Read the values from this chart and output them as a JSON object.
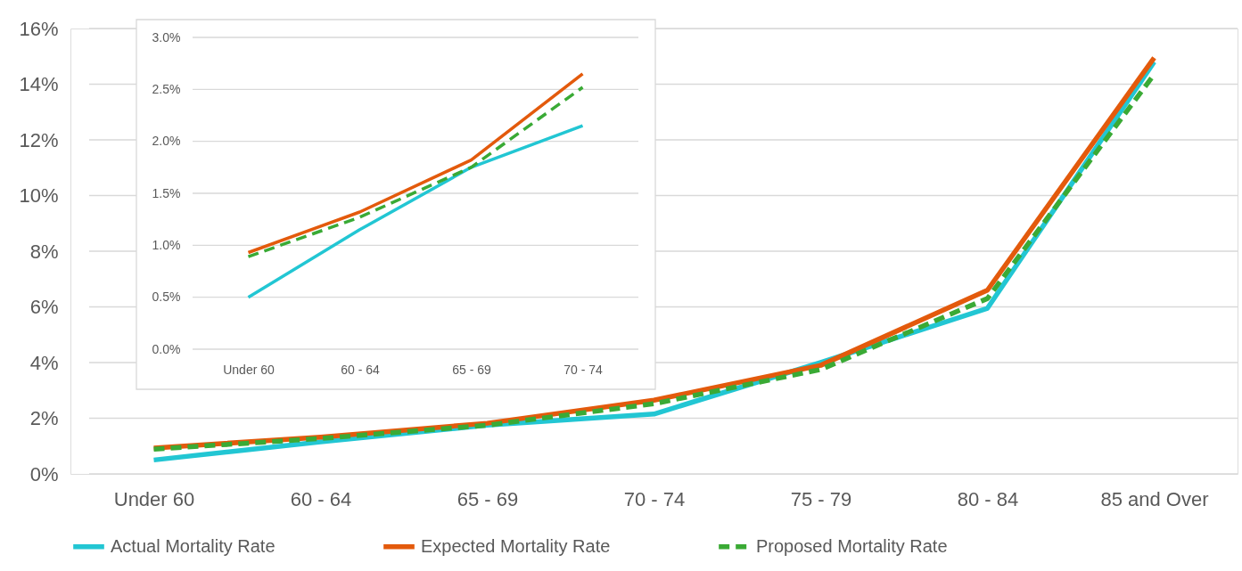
{
  "chart_data": [
    {
      "type": "line",
      "categories": [
        "Under 60",
        "60 - 64",
        "65 - 69",
        "70 - 74",
        "75 - 79",
        "80 - 84",
        "85 and Over"
      ],
      "series": [
        {
          "name": "Actual Mortality Rate",
          "color": "#22c6d3",
          "line_style": "solid",
          "values": [
            0.5,
            1.15,
            1.75,
            2.15,
            4.0,
            5.95,
            14.8
          ]
        },
        {
          "name": "Expected Mortality Rate",
          "color": "#e35a0c",
          "line_style": "solid",
          "values": [
            0.93,
            1.32,
            1.82,
            2.65,
            3.9,
            6.6,
            14.95
          ]
        },
        {
          "name": "Proposed Mortality Rate",
          "color": "#3aaa35",
          "line_style": "dashed",
          "values": [
            0.89,
            1.27,
            1.75,
            2.52,
            3.75,
            6.3,
            14.35
          ]
        }
      ],
      "ylim": [
        0,
        16
      ],
      "yticks": [
        {
          "value": 0,
          "label": "0%"
        },
        {
          "value": 2,
          "label": "2%"
        },
        {
          "value": 4,
          "label": "4%"
        },
        {
          "value": 6,
          "label": "6%"
        },
        {
          "value": 8,
          "label": "8%"
        },
        {
          "value": 10,
          "label": "10%"
        },
        {
          "value": 12,
          "label": "12%"
        },
        {
          "value": 14,
          "label": "14%"
        },
        {
          "value": 16,
          "label": "16%"
        }
      ],
      "grid": "y",
      "legend": "bottom"
    },
    {
      "type": "line",
      "categories": [
        "Under 60",
        "60 - 64",
        "65 - 69",
        "70 - 74"
      ],
      "series": [
        {
          "color": "#22c6d3",
          "line_style": "solid",
          "values": [
            0.5,
            1.15,
            1.75,
            2.15
          ]
        },
        {
          "color": "#e35a0c",
          "line_style": "solid",
          "values": [
            0.93,
            1.32,
            1.82,
            2.65
          ]
        },
        {
          "color": "#3aaa35",
          "line_style": "dashed",
          "values": [
            0.89,
            1.27,
            1.75,
            2.52
          ]
        }
      ],
      "ylim": [
        0,
        3
      ],
      "yticks": [
        {
          "value": 0,
          "label": "0.0%"
        },
        {
          "value": 0.5,
          "label": "0.5%"
        },
        {
          "value": 1,
          "label": "1.0%"
        },
        {
          "value": 1.5,
          "label": "1.5%"
        },
        {
          "value": 2,
          "label": "2.0%"
        },
        {
          "value": 2.5,
          "label": "2.5%"
        },
        {
          "value": 3,
          "label": "3.0%"
        }
      ],
      "grid": "y"
    }
  ]
}
